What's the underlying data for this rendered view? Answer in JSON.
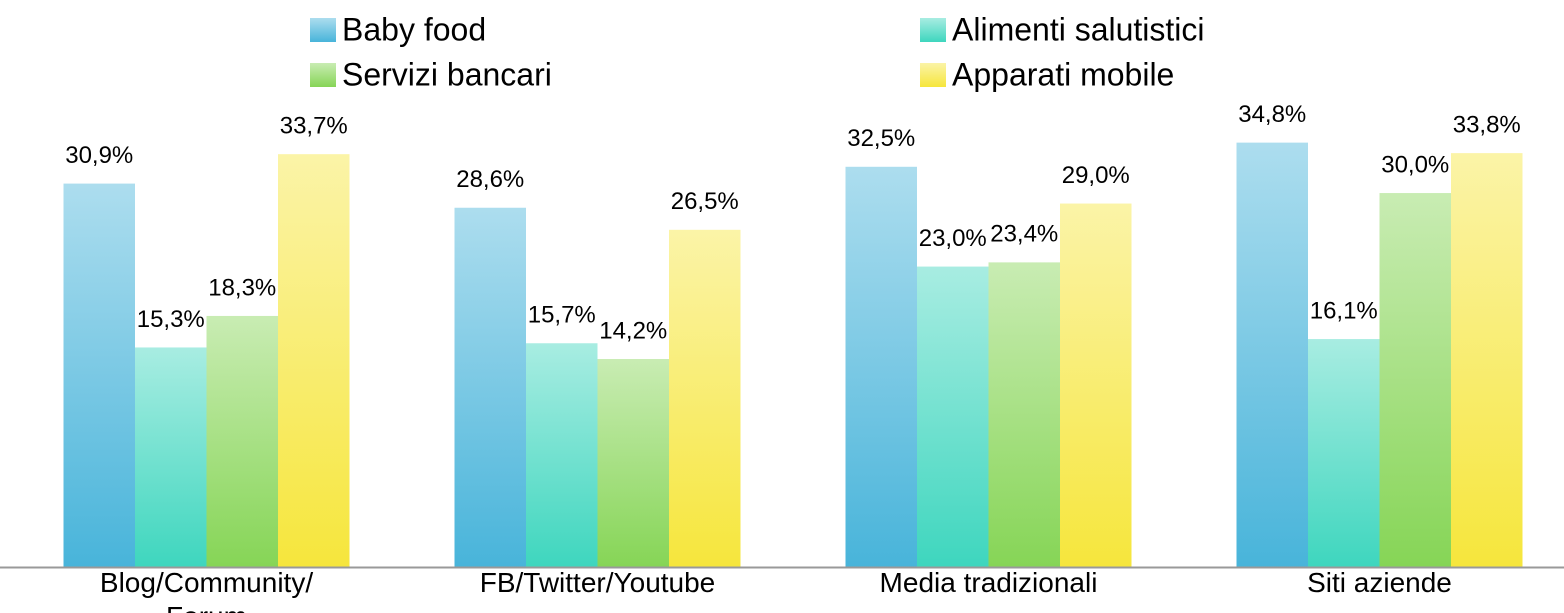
{
  "chart_data": {
    "type": "bar",
    "categories": [
      "Blog/Community/ Forum",
      "FB/Twitter/Youtube",
      "Media tradizionali",
      "Siti aziende"
    ],
    "series": [
      {
        "name": "Baby food",
        "color": "#48b4da",
        "values": [
          30.9,
          28.6,
          32.5,
          34.8
        ],
        "value_labels": [
          "30,9%",
          "28,6%",
          "32,5%",
          "34,8%"
        ]
      },
      {
        "name": "Alimenti salutistici",
        "color": "#3ed6be",
        "values": [
          15.3,
          15.7,
          23.0,
          16.1
        ],
        "value_labels": [
          "15,3%",
          "15,7%",
          "23,0%",
          "16,1%"
        ]
      },
      {
        "name": "Servizi bancari",
        "color": "#86d556",
        "values": [
          18.3,
          14.2,
          23.4,
          30.0
        ],
        "value_labels": [
          "18,3%",
          "14,2%",
          "23,4%",
          "30,0%"
        ]
      },
      {
        "name": "Apparati mobile",
        "color": "#f6e63c",
        "values": [
          33.7,
          26.5,
          29.0,
          33.8
        ],
        "value_labels": [
          "33,7%",
          "26,5%",
          "29,0%",
          "33,8%"
        ]
      }
    ],
    "ylim": [
      -5.6,
      40
    ]
  }
}
